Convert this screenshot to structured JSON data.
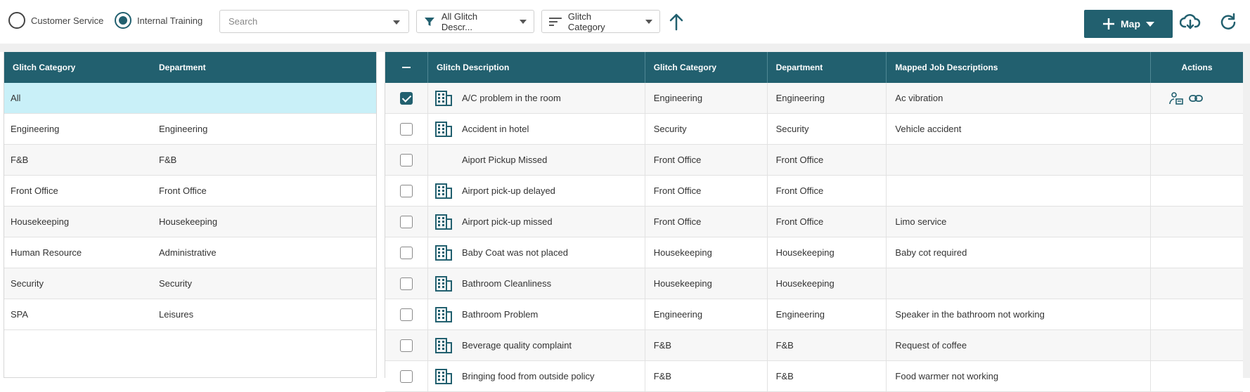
{
  "toolbar": {
    "radio_customer_service": "Customer Service",
    "radio_internal_training": "Internal Training",
    "search_placeholder": "Search",
    "filter_label": "All Glitch Descr...",
    "sort_label": "Glitch Category",
    "map_label": "Map"
  },
  "left_table": {
    "headers": {
      "category": "Glitch Category",
      "department": "Department"
    },
    "rows": [
      {
        "category": "All",
        "department": ""
      },
      {
        "category": "Engineering",
        "department": "Engineering"
      },
      {
        "category": "F&B",
        "department": "F&B"
      },
      {
        "category": "Front Office",
        "department": "Front Office"
      },
      {
        "category": "Housekeeping",
        "department": "Housekeeping"
      },
      {
        "category": "Human Resource",
        "department": "Administrative"
      },
      {
        "category": "Security",
        "department": "Security"
      },
      {
        "category": "SPA",
        "department": "Leisures"
      }
    ]
  },
  "right_table": {
    "headers": {
      "description": "Glitch Description",
      "category": "Glitch Category",
      "department": "Department",
      "mapped": "Mapped Job Descriptions",
      "actions": "Actions"
    },
    "rows": [
      {
        "description": "A/C problem in the room",
        "category": "Engineering",
        "department": "Engineering",
        "mapped": "Ac vibration"
      },
      {
        "description": "Accident in hotel",
        "category": "Security",
        "department": "Security",
        "mapped": "Vehicle accident"
      },
      {
        "description": "Aiport Pickup Missed",
        "category": "Front Office",
        "department": "Front Office",
        "mapped": ""
      },
      {
        "description": "Airport pick-up delayed",
        "category": "Front Office",
        "department": "Front Office",
        "mapped": ""
      },
      {
        "description": "Airport pick-up missed",
        "category": "Front Office",
        "department": "Front Office",
        "mapped": "Limo service"
      },
      {
        "description": "Baby Coat was not placed",
        "category": "Housekeeping",
        "department": "Housekeeping",
        "mapped": "Baby cot required"
      },
      {
        "description": "Bathroom Cleanliness",
        "category": "Housekeeping",
        "department": "Housekeeping",
        "mapped": ""
      },
      {
        "description": "Bathroom Problem",
        "category": "Engineering",
        "department": "Engineering",
        "mapped": "Speaker in the bathroom not working"
      },
      {
        "description": "Beverage quality complaint",
        "category": "F&B",
        "department": "F&B",
        "mapped": "Request of coffee"
      },
      {
        "description": "Bringing food from outside policy",
        "category": "F&B",
        "department": "F&B",
        "mapped": "Food warmer not working"
      }
    ]
  }
}
